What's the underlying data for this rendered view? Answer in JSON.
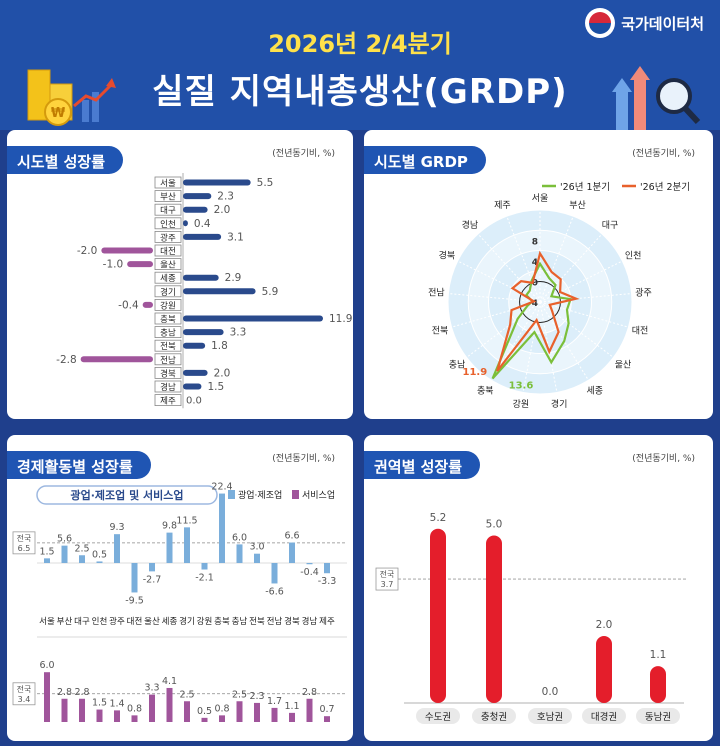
{
  "header": {
    "org": "국가데이터처",
    "subtitle": "2026년 2/4분기",
    "title": "실질 지역내총생산(GRDP)"
  },
  "unit_label": "(전년동기비, %)",
  "panels": {
    "p1": "시도별 성장률",
    "p2": "시도별 GRDP",
    "p3": "경제활동별 성장률",
    "p4": "권역별 성장률"
  },
  "colors": {
    "navy": "#2a4a8c",
    "purple": "#a0559b",
    "lightblue": "#7aaedb",
    "red": "#e41e2b",
    "green": "#7bbf3a",
    "orange": "#e8612c"
  },
  "chart_data": [
    {
      "type": "bar",
      "orientation": "horizontal",
      "categories": [
        "서울",
        "부산",
        "대구",
        "인천",
        "광주",
        "대전",
        "울산",
        "세종",
        "경기",
        "강원",
        "충북",
        "충남",
        "전북",
        "전남",
        "경북",
        "경남",
        "제주"
      ],
      "values": [
        5.5,
        2.3,
        2.0,
        0.4,
        3.1,
        -2.0,
        -1.0,
        2.9,
        5.9,
        -0.4,
        11.9,
        3.3,
        1.8,
        -2.8,
        2.0,
        1.5,
        0.0
      ],
      "value_labels": [
        "5.5",
        "2.3",
        "2.0",
        "0.4",
        "3.1",
        "-2.0",
        "-1.0",
        "2.9",
        "5.9",
        "-0.4",
        "11.9",
        "3.3",
        "1.8",
        "-2.8",
        "2.0",
        "1.5",
        "0.0"
      ]
    },
    {
      "type": "radar",
      "axes": [
        "서울",
        "부산",
        "대구",
        "인천",
        "광주",
        "대전",
        "울산",
        "세종",
        "경기",
        "강원",
        "충북",
        "충남",
        "전북",
        "전남",
        "경북",
        "경남",
        "제주"
      ],
      "ticks": [
        "8",
        "4",
        "0",
        "-4"
      ],
      "series": [
        {
          "name": "'26년 1분기",
          "values": [
            3.5,
            1.0,
            0.5,
            -1.5,
            2.0,
            1.5,
            3.0,
            5.0,
            8.0,
            2.0,
            13.6,
            1.5,
            -1.5,
            -2.5,
            -1.0,
            -1.0,
            0.5
          ]
        },
        {
          "name": "'26년 2분기",
          "values": [
            5.5,
            2.3,
            2.0,
            0.4,
            3.1,
            -2.0,
            -1.0,
            2.9,
            5.9,
            -0.4,
            11.9,
            3.3,
            1.8,
            -2.8,
            2.0,
            1.5,
            0.0
          ]
        }
      ],
      "annotations": [
        "11.9",
        "13.6"
      ]
    },
    {
      "type": "bar",
      "title": "광업·제조업 및 서비스업",
      "categories": [
        "서울",
        "부산",
        "대구",
        "인천",
        "광주",
        "대전",
        "울산",
        "세종",
        "경기",
        "강원",
        "충북",
        "충남",
        "전북",
        "전남",
        "경북",
        "경남",
        "제주"
      ],
      "series": [
        {
          "name": "광업·제조업",
          "values": [
            1.5,
            5.6,
            2.5,
            0.5,
            9.3,
            -9.5,
            -2.7,
            9.8,
            11.5,
            -2.1,
            22.4,
            6.0,
            3.0,
            -6.6,
            6.6,
            -0.4,
            -3.3
          ]
        },
        {
          "name": "서비스업",
          "values": [
            6.0,
            2.8,
            2.8,
            1.5,
            1.4,
            0.8,
            3.3,
            4.1,
            2.5,
            0.5,
            0.8,
            2.5,
            2.3,
            1.7,
            1.1,
            2.8,
            0.7
          ]
        }
      ],
      "labels_mfg": [
        "1.5",
        "5.6",
        "2.5",
        "0.5",
        "9.3",
        "-9.5",
        "-2.7",
        "9.8",
        "11.5",
        "-2.1",
        "22.4",
        "6.0",
        "3.0",
        "-6.6",
        "6.6",
        "-0.4",
        "-3.3"
      ],
      "labels_svc": [
        "6.0",
        "2.8",
        "2.8",
        "1.5",
        "1.4",
        "0.8",
        "3.3",
        "4.1",
        "2.5",
        "0.5",
        "0.8",
        "2.5",
        "2.3",
        "1.7",
        "1.1",
        "2.8",
        "0.7"
      ],
      "refs": [
        {
          "label": "전국",
          "value": "6.5"
        },
        {
          "label": "전국",
          "value": "3.4"
        }
      ]
    },
    {
      "type": "bar",
      "categories": [
        "수도권",
        "충청권",
        "호남권",
        "대경권",
        "동남권"
      ],
      "values": [
        5.2,
        5.0,
        0.0,
        2.0,
        1.1
      ],
      "value_labels": [
        "5.2",
        "5.0",
        "0.0",
        "2.0",
        "1.1"
      ],
      "ref": {
        "label": "전국",
        "value": "3.7"
      }
    }
  ]
}
